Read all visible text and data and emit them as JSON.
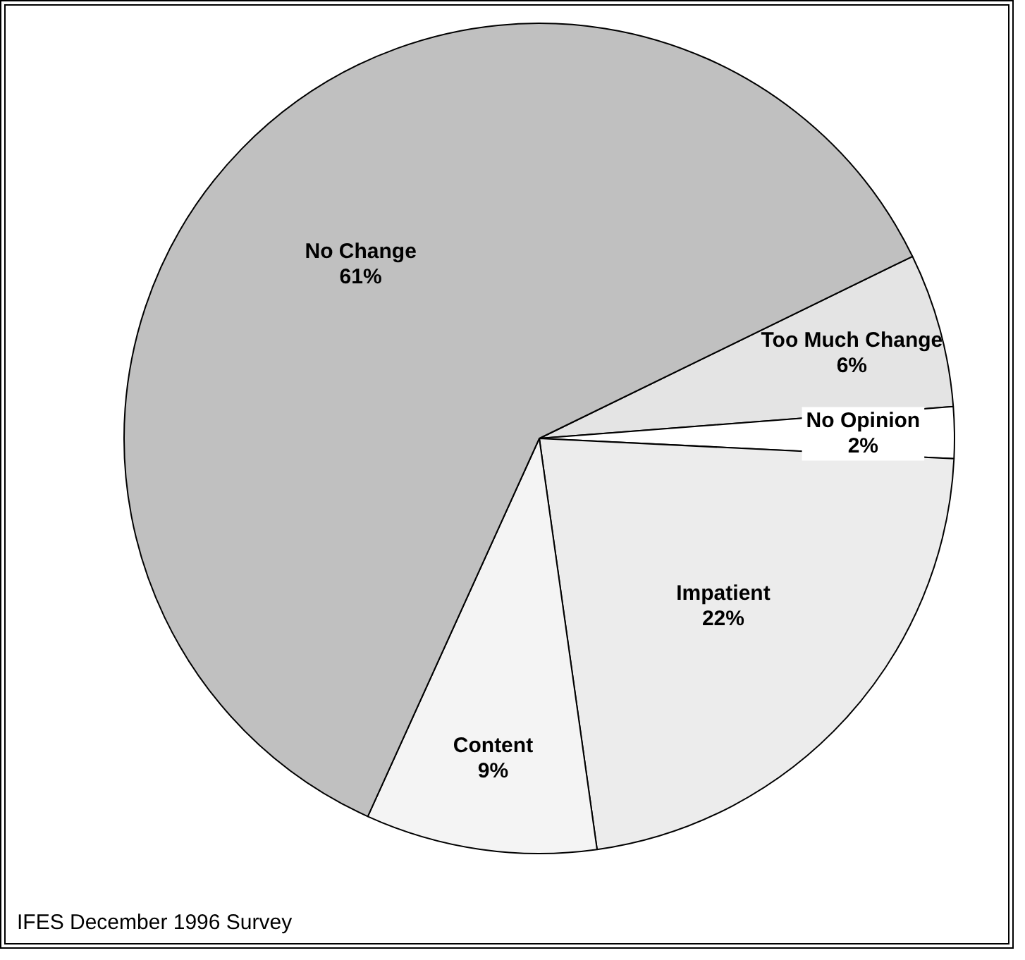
{
  "chart_data": {
    "type": "pie",
    "categories": [
      "Too Much Change",
      "No Opinion",
      "Impatient",
      "Content",
      "No Change"
    ],
    "values": [
      6,
      2,
      22,
      9,
      61
    ],
    "value_labels": [
      "6%",
      "2%",
      "22%",
      "9%",
      "61%"
    ],
    "colors": [
      "#e4e4e4",
      "#ffffff",
      "#ececec",
      "#f4f4f4",
      "#c0c0c0"
    ],
    "annotations": [
      "IFES December 1996 Survey"
    ],
    "legend": false
  }
}
